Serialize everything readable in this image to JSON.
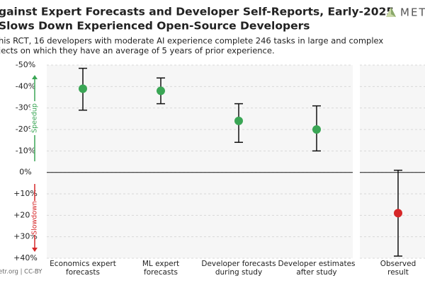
{
  "header": {
    "title_lines": [
      "gainst Expert Forecasts and Developer Self-Reports, Early-2025",
      " Slows Down Experienced Open-Source Developers"
    ],
    "subtitle_lines": [
      "his RCT, 16 developers with moderate AI experience complete 246 tasks in large and complex",
      "jects on which they have an average of 5 years of prior experience."
    ],
    "logo": "MET",
    "footer": "etr.org | CC-BY"
  },
  "chart_data": [
    {
      "type": "errorbar",
      "categories": [
        [
          "Economics expert",
          "forecasts"
        ],
        [
          "ML expert",
          "forecasts"
        ],
        [
          "Developer forecasts",
          "during study"
        ],
        [
          "Developer estimates",
          "after study"
        ]
      ],
      "values": [
        -39,
        -38,
        -24,
        -20
      ],
      "low": [
        -48.5,
        -44,
        -32,
        -31
      ],
      "high": [
        -29,
        -32,
        -14,
        -10
      ],
      "color": "#3aa655",
      "ylim": [
        -50,
        40
      ],
      "y_inverted": true,
      "yticks": [
        {
          "value": -50,
          "label": "-50%"
        },
        {
          "value": -40,
          "label": "-40%"
        },
        {
          "value": -30,
          "label": "-30%"
        },
        {
          "value": -20,
          "label": "-20%"
        },
        {
          "value": -10,
          "label": "-10%"
        },
        {
          "value": 0,
          "label": "0%"
        },
        {
          "value": 10,
          "label": "+10%"
        },
        {
          "value": 20,
          "label": "+20%"
        },
        {
          "value": 30,
          "label": "+30%"
        },
        {
          "value": 40,
          "label": "+40%"
        }
      ],
      "grid": true,
      "reference_line": 0,
      "annotations": [
        {
          "text": "Speedup",
          "color": "#3aa655"
        },
        {
          "text": "Slowdown",
          "color": "#d62728"
        }
      ]
    },
    {
      "type": "errorbar",
      "categories": [
        [
          "Observed",
          "result"
        ]
      ],
      "values": [
        19
      ],
      "low": [
        -1
      ],
      "high": [
        39
      ],
      "color": "#d62728",
      "ylim": [
        -50,
        40
      ],
      "y_inverted": true,
      "grid": true,
      "reference_line": 0
    }
  ]
}
